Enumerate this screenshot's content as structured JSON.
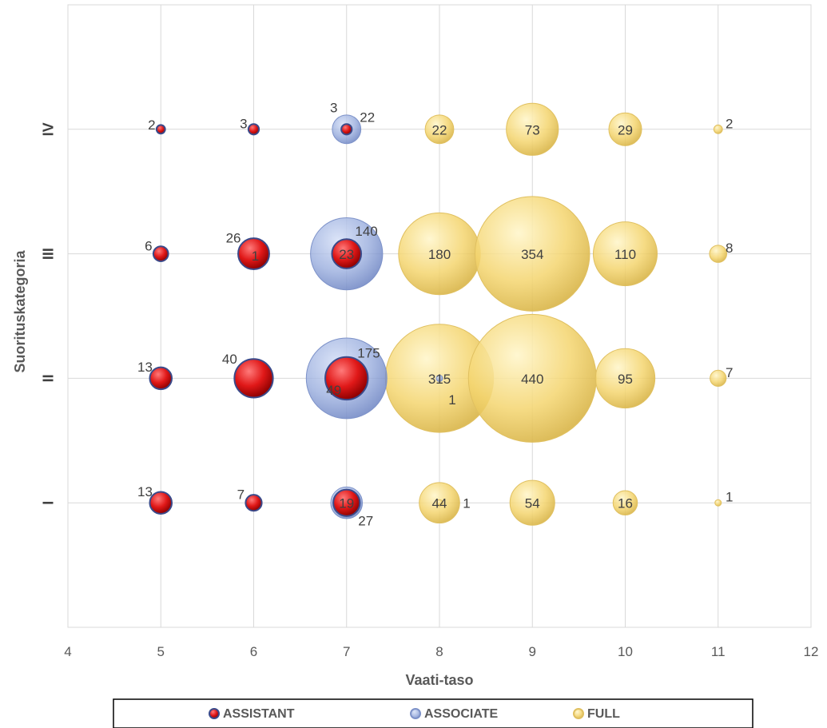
{
  "chart_data": {
    "type": "scatter",
    "subtype": "bubble",
    "title": "",
    "xlabel": "Vaati-taso",
    "ylabel": "Suorituskategoria",
    "xlim": [
      4,
      12
    ],
    "xticks": [
      4,
      5,
      6,
      7,
      8,
      9,
      10,
      11,
      12
    ],
    "ylim": [
      0,
      5
    ],
    "ycategories": [
      "I",
      "II",
      "III",
      "IV"
    ],
    "grid": true,
    "legend_position": "bottom",
    "series": [
      {
        "name": "ASSISTANT",
        "color": "#e02020",
        "points": [
          {
            "x": 5,
            "y": 4,
            "value": 2
          },
          {
            "x": 6,
            "y": 4,
            "value": 3
          },
          {
            "x": 7,
            "y": 4,
            "value": 3
          },
          {
            "x": 5,
            "y": 3,
            "value": 6
          },
          {
            "x": 6,
            "y": 3,
            "value": 26
          },
          {
            "x": 7,
            "y": 3,
            "value": 23
          },
          {
            "x": 5,
            "y": 2,
            "value": 13
          },
          {
            "x": 6,
            "y": 2,
            "value": 40
          },
          {
            "x": 7,
            "y": 2,
            "value": 49
          },
          {
            "x": 5,
            "y": 1,
            "value": 13
          },
          {
            "x": 6,
            "y": 1,
            "value": 7
          },
          {
            "x": 7,
            "y": 1,
            "value": 19
          }
        ]
      },
      {
        "name": "ASSOCIATE",
        "color": "#8ea3d6",
        "points": [
          {
            "x": 7,
            "y": 4,
            "value": 22
          },
          {
            "x": 6,
            "y": 3,
            "value": 1
          },
          {
            "x": 7,
            "y": 3,
            "value": 140
          },
          {
            "x": 7,
            "y": 2,
            "value": 175
          },
          {
            "x": 8,
            "y": 2,
            "value": 1
          },
          {
            "x": 7,
            "y": 1,
            "value": 27
          }
        ]
      },
      {
        "name": "FULL",
        "color": "#f2d068",
        "points": [
          {
            "x": 8,
            "y": 4,
            "value": 22
          },
          {
            "x": 9,
            "y": 4,
            "value": 73
          },
          {
            "x": 10,
            "y": 4,
            "value": 29
          },
          {
            "x": 11,
            "y": 4,
            "value": 2
          },
          {
            "x": 8,
            "y": 3,
            "value": 180
          },
          {
            "x": 9,
            "y": 3,
            "value": 354
          },
          {
            "x": 10,
            "y": 3,
            "value": 110
          },
          {
            "x": 11,
            "y": 3,
            "value": 8
          },
          {
            "x": 8,
            "y": 2,
            "value": 315
          },
          {
            "x": 9,
            "y": 2,
            "value": 440
          },
          {
            "x": 10,
            "y": 2,
            "value": 95
          },
          {
            "x": 11,
            "y": 2,
            "value": 7
          },
          {
            "x": 8,
            "y": 1,
            "value": 44
          },
          {
            "x": 8,
            "y": 1,
            "value": 1
          },
          {
            "x": 9,
            "y": 1,
            "value": 54
          },
          {
            "x": 10,
            "y": 1,
            "value": 16
          },
          {
            "x": 11,
            "y": 1,
            "value": 1
          }
        ]
      }
    ]
  }
}
